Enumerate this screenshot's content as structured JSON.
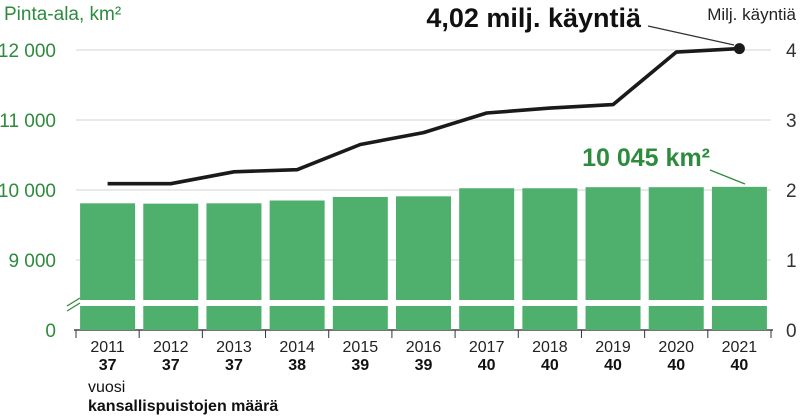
{
  "chart_data": {
    "type": "bar+line",
    "title": "",
    "ylabel_left": "Pinta-ala, km²",
    "ylabel_right": "Milj. käyntiä",
    "xlabel": "vuosi",
    "count_label": "kansallispuistojen määrä",
    "categories": [
      "2011",
      "2012",
      "2013",
      "2014",
      "2015",
      "2016",
      "2017",
      "2018",
      "2019",
      "2020",
      "2021"
    ],
    "park_counts": [
      "37",
      "37",
      "37",
      "38",
      "39",
      "39",
      "40",
      "40",
      "40",
      "40",
      "40"
    ],
    "series": [
      {
        "type": "bar",
        "axis": "left",
        "values": [
          9810,
          9805,
          9810,
          9850,
          9900,
          9910,
          10025,
          10025,
          10040,
          10040,
          10045
        ]
      },
      {
        "type": "line",
        "axis": "right",
        "values": [
          2.09,
          2.09,
          2.26,
          2.29,
          2.65,
          2.82,
          3.1,
          3.17,
          3.22,
          3.97,
          4.02
        ]
      }
    ],
    "left_axis": {
      "ticks": [
        0,
        9000,
        10000,
        11000,
        12000
      ],
      "tick_labels": [
        "0",
        "9 000",
        "10 000",
        "11 000",
        "12 000"
      ],
      "broken": true,
      "ylim_upper": [
        9000,
        12000
      ]
    },
    "right_axis": {
      "ticks": [
        0,
        1,
        2,
        3,
        4
      ],
      "tick_labels": [
        "0",
        "1",
        "2",
        "3",
        "4"
      ],
      "ylim": [
        0,
        4
      ]
    },
    "annotations": {
      "visits": "4,02 milj. käyntiä",
      "area": "10 045 km²"
    },
    "colors": {
      "bar": "#4faf6d",
      "line": "#1a1a1a",
      "axis_left": "#2e8b3e",
      "area_annotation": "#2e8b3e"
    }
  }
}
